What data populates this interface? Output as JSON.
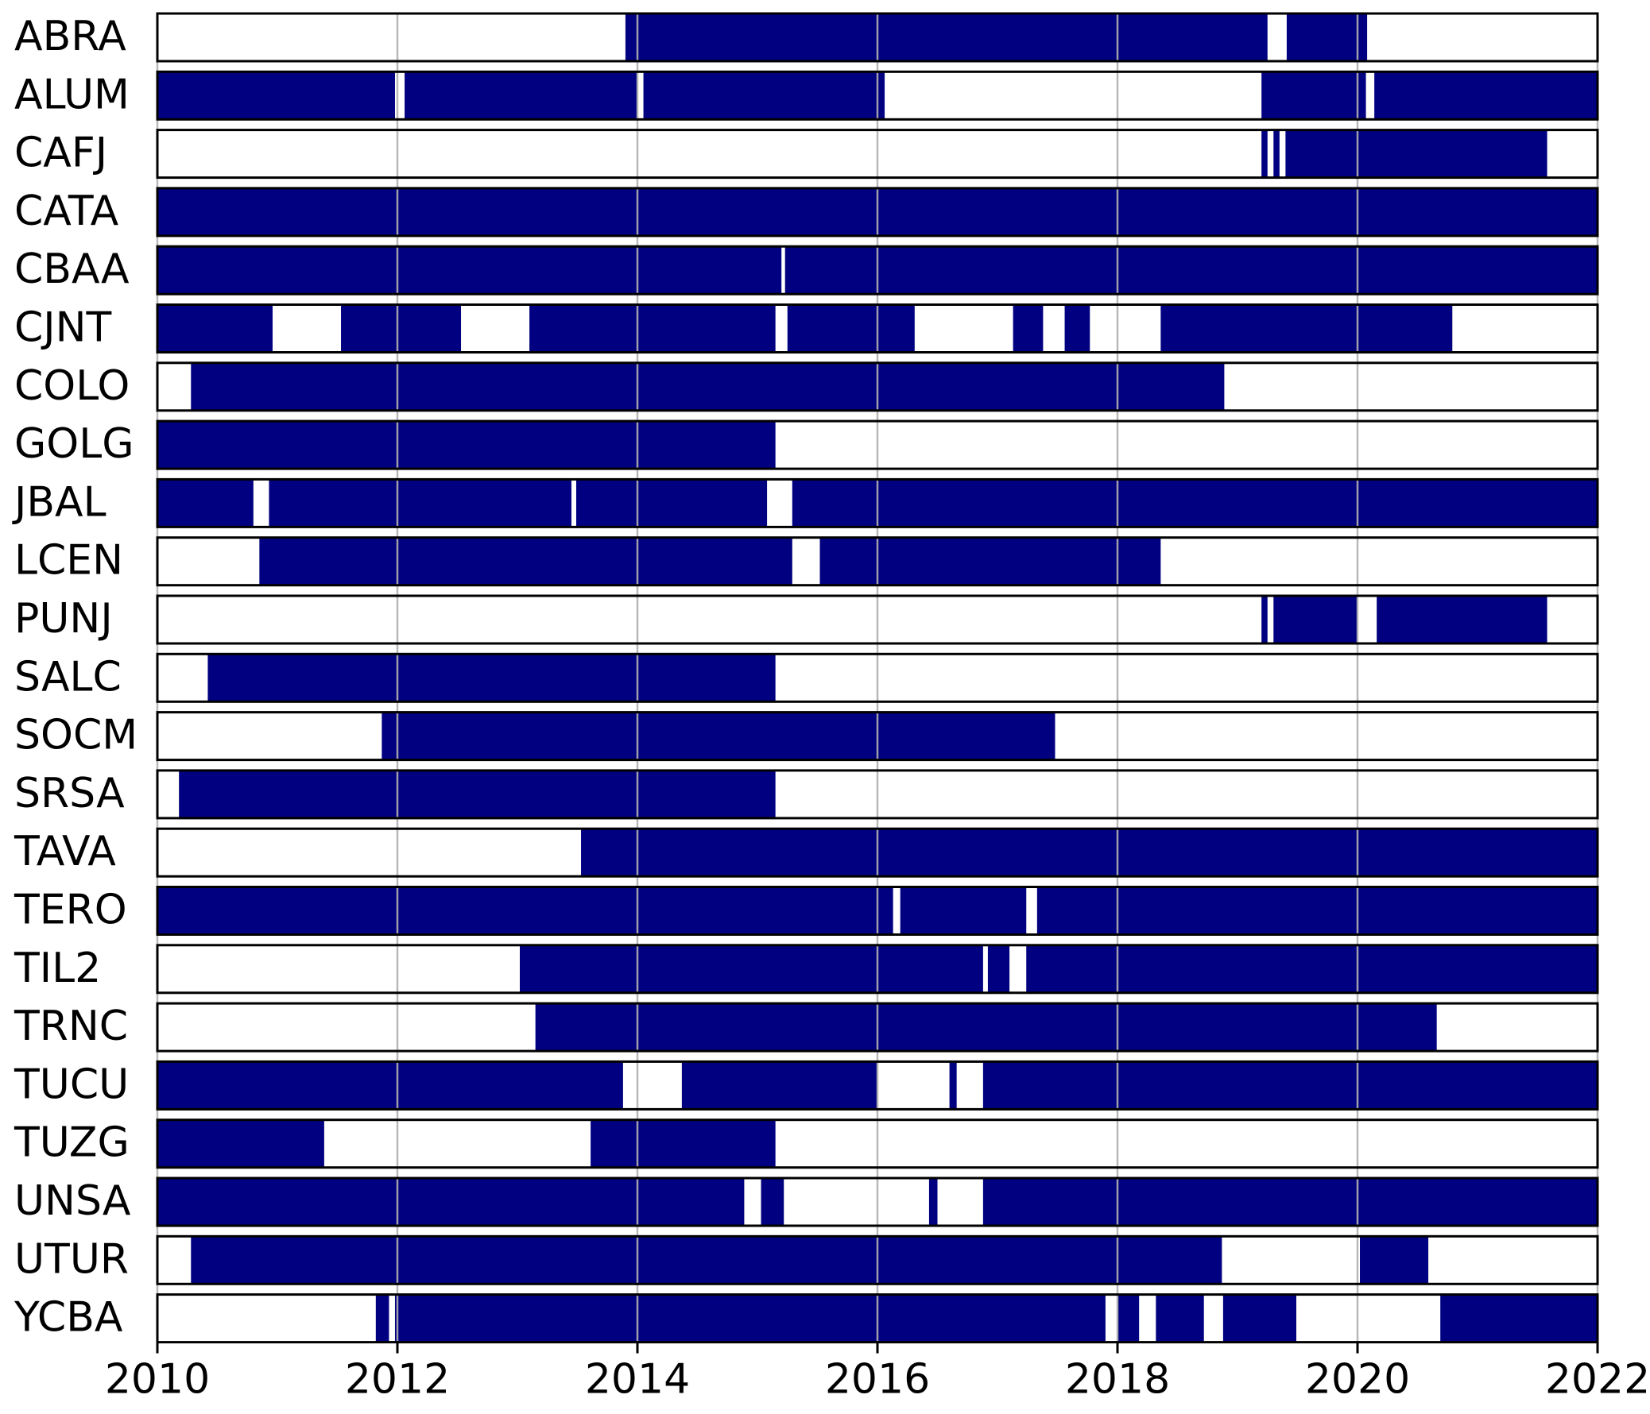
{
  "chart_data": {
    "type": "timeline",
    "color": "#000080",
    "grid": true,
    "xlim": [
      2010,
      2022
    ],
    "xticks": [
      2010,
      2012,
      2014,
      2016,
      2018,
      2020,
      2022
    ],
    "rows": [
      {
        "name": "ABRA",
        "intervals": [
          [
            2013.9,
            2019.25
          ],
          [
            2019.41,
            2020.08
          ]
        ]
      },
      {
        "name": "ALUM",
        "intervals": [
          [
            2010,
            2011.98
          ],
          [
            2012.06,
            2014.0
          ],
          [
            2014.05,
            2016.06
          ],
          [
            2019.2,
            2020.07
          ],
          [
            2020.14,
            2022
          ]
        ]
      },
      {
        "name": "CAFJ",
        "intervals": [
          [
            2019.2,
            2019.25
          ],
          [
            2019.3,
            2019.35
          ],
          [
            2019.4,
            2021.58
          ]
        ]
      },
      {
        "name": "CATA",
        "intervals": [
          [
            2010,
            2022
          ]
        ]
      },
      {
        "name": "CBAA",
        "intervals": [
          [
            2010,
            2015.2
          ],
          [
            2015.23,
            2022
          ]
        ]
      },
      {
        "name": "CJNT",
        "intervals": [
          [
            2010,
            2010.96
          ],
          [
            2011.53,
            2012.53
          ],
          [
            2013.1,
            2015.15
          ],
          [
            2015.25,
            2016.31
          ],
          [
            2017.13,
            2017.38
          ],
          [
            2017.56,
            2017.77
          ],
          [
            2018.36,
            2020.79
          ]
        ]
      },
      {
        "name": "COLO",
        "intervals": [
          [
            2010.28,
            2018.89
          ]
        ]
      },
      {
        "name": "GOLG",
        "intervals": [
          [
            2010,
            2015.15
          ]
        ]
      },
      {
        "name": "JBAL",
        "intervals": [
          [
            2010,
            2010.8
          ],
          [
            2010.93,
            2013.45
          ],
          [
            2013.49,
            2015.08
          ],
          [
            2015.29,
            2022
          ]
        ]
      },
      {
        "name": "LCEN",
        "intervals": [
          [
            2010.85,
            2015.29
          ],
          [
            2015.52,
            2018.36
          ]
        ]
      },
      {
        "name": "PUNJ",
        "intervals": [
          [
            2019.2,
            2019.25
          ],
          [
            2019.3,
            2020.0
          ],
          [
            2020.16,
            2021.58
          ]
        ]
      },
      {
        "name": "SALC",
        "intervals": [
          [
            2010.42,
            2015.15
          ]
        ]
      },
      {
        "name": "SOCM",
        "intervals": [
          [
            2011.87,
            2017.48
          ]
        ]
      },
      {
        "name": "SRSA",
        "intervals": [
          [
            2010.18,
            2015.15
          ]
        ]
      },
      {
        "name": "TAVA",
        "intervals": [
          [
            2013.53,
            2022
          ]
        ]
      },
      {
        "name": "TERO",
        "intervals": [
          [
            2010,
            2016.13
          ],
          [
            2016.19,
            2017.24
          ],
          [
            2017.33,
            2022
          ]
        ]
      },
      {
        "name": "TIL2",
        "intervals": [
          [
            2013.02,
            2016.88
          ],
          [
            2016.92,
            2017.1
          ],
          [
            2017.24,
            2022
          ]
        ]
      },
      {
        "name": "TRNC",
        "intervals": [
          [
            2013.15,
            2020.66
          ]
        ]
      },
      {
        "name": "TUCU",
        "intervals": [
          [
            2010,
            2013.88
          ],
          [
            2014.37,
            2016.0
          ],
          [
            2016.6,
            2016.66
          ],
          [
            2016.88,
            2022
          ]
        ]
      },
      {
        "name": "TUZG",
        "intervals": [
          [
            2010,
            2011.39
          ],
          [
            2013.61,
            2015.15
          ]
        ]
      },
      {
        "name": "UNSA",
        "intervals": [
          [
            2010,
            2014.89
          ],
          [
            2015.03,
            2015.22
          ],
          [
            2016.43,
            2016.5
          ],
          [
            2016.88,
            2022
          ]
        ]
      },
      {
        "name": "UTUR",
        "intervals": [
          [
            2010.28,
            2018.87
          ],
          [
            2020.02,
            2020.59
          ]
        ]
      },
      {
        "name": "YCBA",
        "intervals": [
          [
            2011.82,
            2011.93
          ],
          [
            2011.98,
            2017.9
          ],
          [
            2018.0,
            2018.18
          ],
          [
            2018.32,
            2018.72
          ],
          [
            2018.88,
            2019.49
          ],
          [
            2020.69,
            2022
          ]
        ]
      }
    ]
  }
}
